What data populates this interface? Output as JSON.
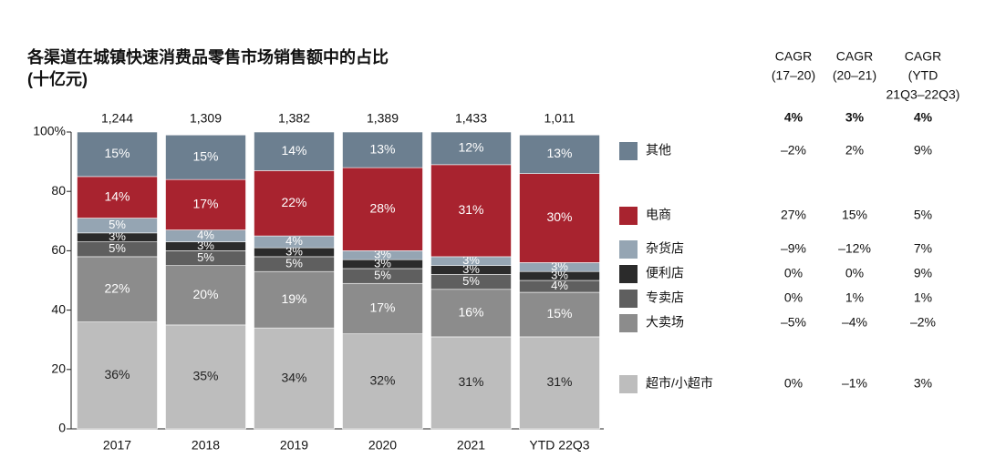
{
  "chart_data": {
    "type": "stacked_bar",
    "title": [
      "各渠道在城镇快速消费品零售市场销售额中的占比",
      "(十亿元)"
    ],
    "categories": [
      "2017",
      "2018",
      "2019",
      "2020",
      "2021",
      "YTD 22Q3"
    ],
    "totals": {
      "values": [
        1244,
        1309,
        1382,
        1389,
        1433,
        1011
      ],
      "value_labels": [
        "1,244",
        "1,309",
        "1,382",
        "1,389",
        "1,433",
        "1,011"
      ]
    },
    "ylim": [
      0,
      100
    ],
    "yticks": [
      0,
      20,
      40,
      60,
      80,
      {
        "value": 100,
        "label": "100%"
      }
    ],
    "cagr_headers": [
      [
        "CAGR",
        "(17–20)"
      ],
      [
        "CAGR",
        "(20–21)"
      ],
      [
        "CAGR",
        "(YTD",
        "21Q3–22Q3)"
      ]
    ],
    "cagr_total": {
      "values": [
        4,
        3,
        4
      ],
      "value_labels": [
        "4%",
        "3%",
        "4%"
      ]
    },
    "series": [
      {
        "name": "超市/小超市",
        "color": "#bdbdbd",
        "values": [
          36,
          35,
          34,
          32,
          31,
          31
        ],
        "value_labels": [
          "36%",
          "35%",
          "34%",
          "32%",
          "31%",
          "31%"
        ],
        "cagr": [
          0,
          -1,
          3
        ],
        "cagr_labels": [
          "0%",
          "–1%",
          "3%"
        ]
      },
      {
        "name": "大卖场",
        "color": "#8c8c8c",
        "values": [
          22,
          20,
          19,
          17,
          16,
          15
        ],
        "value_labels": [
          "22%",
          "20%",
          "19%",
          "17%",
          "16%",
          "15%"
        ],
        "cagr": [
          -5,
          -4,
          -2
        ],
        "cagr_labels": [
          "–5%",
          "–4%",
          "–2%"
        ]
      },
      {
        "name": "专卖店",
        "color": "#5f5f5f",
        "values": [
          5,
          5,
          5,
          5,
          5,
          4
        ],
        "value_labels": [
          "5%",
          "5%",
          "5%",
          "5%",
          "5%",
          "4%"
        ],
        "cagr": [
          0,
          1,
          1
        ],
        "cagr_labels": [
          "0%",
          "1%",
          "1%"
        ]
      },
      {
        "name": "便利店",
        "color": "#2b2b2b",
        "values": [
          3,
          3,
          3,
          3,
          3,
          3
        ],
        "value_labels": [
          "3%",
          "3%",
          "3%",
          "3%",
          "3%",
          "3%"
        ],
        "cagr": [
          0,
          0,
          9
        ],
        "cagr_labels": [
          "0%",
          "0%",
          "9%"
        ]
      },
      {
        "name": "杂货店",
        "color": "#95a5b3",
        "values": [
          5,
          4,
          4,
          3,
          3,
          3
        ],
        "value_labels": [
          "5%",
          "4%",
          "4%",
          "3%",
          "3%",
          "3%"
        ],
        "cagr": [
          -9,
          -12,
          7
        ],
        "cagr_labels": [
          "–9%",
          "–12%",
          "7%"
        ]
      },
      {
        "name": "电商",
        "color": "#a8232f",
        "values": [
          14,
          17,
          22,
          28,
          31,
          30
        ],
        "value_labels": [
          "14%",
          "17%",
          "22%",
          "28%",
          "31%",
          "30%"
        ],
        "cagr": [
          27,
          15,
          5
        ],
        "cagr_labels": [
          "27%",
          "15%",
          "5%"
        ]
      },
      {
        "name": "其他",
        "color": "#6c7f90",
        "values": [
          15,
          15,
          14,
          13,
          12,
          13
        ],
        "value_labels": [
          "15%",
          "15%",
          "14%",
          "13%",
          "12%",
          "13%"
        ],
        "cagr": [
          -2,
          2,
          9
        ],
        "cagr_labels": [
          "–2%",
          "2%",
          "9%"
        ]
      }
    ]
  }
}
